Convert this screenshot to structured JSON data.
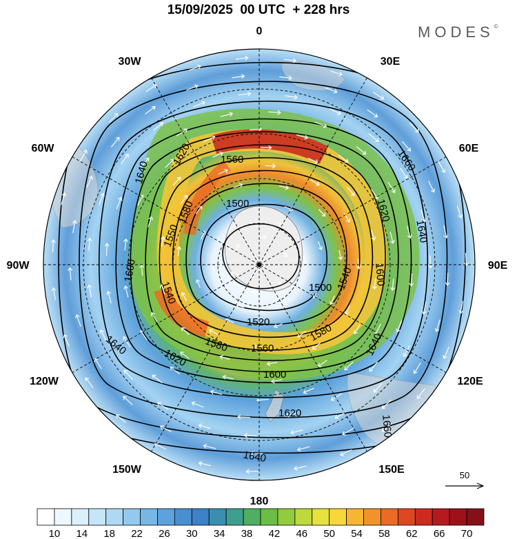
{
  "header": {
    "title": "15/09/2025  00 UTC  + 228 hrs",
    "brand": "MODES",
    "brand_mark": "©"
  },
  "map": {
    "projection": "polar-stereographic-south",
    "longitude_labels": [
      "0",
      "30E",
      "60E",
      "90E",
      "120E",
      "150E",
      "180",
      "150W",
      "120W",
      "90W",
      "60W",
      "30W"
    ],
    "contour_labels": [
      "1500",
      "1500",
      "1520",
      "1540",
      "1540",
      "1550",
      "1560",
      "1560",
      "1580",
      "1580",
      "1580",
      "1600",
      "1600",
      "1600",
      "1620",
      "1620",
      "1620",
      "1620",
      "1640",
      "1640",
      "1640",
      "1640",
      "1640",
      "1660",
      "1660"
    ],
    "reference_vector": {
      "label": "50"
    },
    "colors": {
      "ocean": "#ffffff",
      "land": "#d6d6d6",
      "contour": "#000000"
    }
  },
  "colorbar": {
    "ticks": [
      "10",
      "14",
      "18",
      "22",
      "26",
      "30",
      "34",
      "38",
      "42",
      "46",
      "50",
      "54",
      "58",
      "62",
      "66",
      "70"
    ],
    "colors": [
      "#ffffff",
      "#eef7fd",
      "#dcf0fb",
      "#c6e6f8",
      "#aed9f4",
      "#93c9ef",
      "#78b6e6",
      "#5ea2dc",
      "#4a8fd0",
      "#3c82c4",
      "#3a8fb0",
      "#3f9f8e",
      "#4fae62",
      "#6abd45",
      "#92cb3e",
      "#bfd83b",
      "#e5e23c",
      "#f7d838",
      "#f6b632",
      "#f1922b",
      "#ea6b25",
      "#df4722",
      "#cd2a20",
      "#b6191e",
      "#9d121a",
      "#84101a"
    ]
  }
}
